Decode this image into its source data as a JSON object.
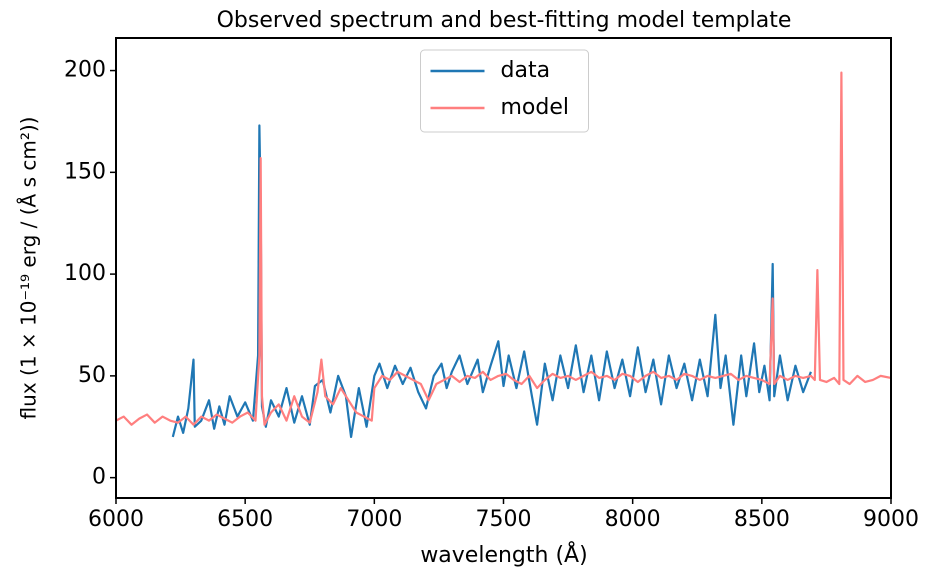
{
  "chart_data": {
    "type": "line",
    "title": "Observed spectrum and best-fitting model template",
    "xlabel": "wavelength (Å)",
    "ylabel": "flux (1 × 10⁻¹⁹ erg / (Å s cm²))",
    "xlim": [
      6000,
      9000
    ],
    "xticks": [
      6000,
      6500,
      7000,
      7500,
      8000,
      8500,
      9000
    ],
    "ylim": [
      -10,
      216
    ],
    "yticks": [
      0,
      50,
      100,
      150,
      200
    ],
    "legend": "upper center",
    "series": [
      {
        "name": "data",
        "color": "#1f77b4",
        "x": [
          6220,
          6240,
          6260,
          6280,
          6300,
          6305,
          6330,
          6360,
          6380,
          6400,
          6420,
          6440,
          6470,
          6500,
          6530,
          6550,
          6555,
          6560,
          6565,
          6580,
          6600,
          6630,
          6660,
          6690,
          6720,
          6750,
          6770,
          6800,
          6830,
          6860,
          6890,
          6910,
          6940,
          6970,
          7000,
          7020,
          7050,
          7080,
          7110,
          7140,
          7170,
          7200,
          7230,
          7260,
          7280,
          7300,
          7330,
          7360,
          7400,
          7420,
          7450,
          7480,
          7500,
          7520,
          7550,
          7580,
          7610,
          7630,
          7660,
          7690,
          7720,
          7750,
          7780,
          7810,
          7840,
          7870,
          7900,
          7930,
          7960,
          7990,
          8020,
          8050,
          8080,
          8110,
          8140,
          8170,
          8200,
          8230,
          8260,
          8290,
          8320,
          8340,
          8360,
          8390,
          8420,
          8440,
          8470,
          8490,
          8510,
          8530,
          8542,
          8548,
          8570,
          8600,
          8630,
          8660,
          8690
        ],
        "values": [
          20,
          30,
          22,
          34,
          58,
          25,
          28,
          38,
          24,
          35,
          26,
          40,
          30,
          37,
          28,
          60,
          173,
          134,
          35,
          25,
          38,
          30,
          44,
          27,
          40,
          26,
          45,
          48,
          32,
          50,
          40,
          20,
          44,
          25,
          50,
          56,
          44,
          55,
          46,
          54,
          42,
          34,
          50,
          56,
          44,
          52,
          60,
          46,
          58,
          42,
          55,
          67,
          45,
          60,
          44,
          62,
          40,
          26,
          56,
          38,
          60,
          44,
          65,
          42,
          60,
          38,
          62,
          44,
          58,
          40,
          64,
          42,
          58,
          36,
          60,
          44,
          56,
          38,
          58,
          40,
          80,
          44,
          60,
          26,
          60,
          40,
          66,
          42,
          55,
          38,
          105,
          40,
          60,
          38,
          55,
          42,
          52
        ]
      },
      {
        "name": "model",
        "color": "#ff7f7f",
        "x": [
          6000,
          6030,
          6060,
          6090,
          6120,
          6150,
          6180,
          6210,
          6240,
          6270,
          6300,
          6330,
          6360,
          6390,
          6420,
          6450,
          6480,
          6510,
          6540,
          6555,
          6560,
          6565,
          6575,
          6600,
          6630,
          6660,
          6690,
          6720,
          6750,
          6780,
          6795,
          6810,
          6840,
          6870,
          6900,
          6930,
          6960,
          6990,
          7000,
          7030,
          7060,
          7090,
          7120,
          7150,
          7180,
          7210,
          7240,
          7270,
          7300,
          7330,
          7360,
          7390,
          7420,
          7450,
          7480,
          7510,
          7540,
          7570,
          7600,
          7630,
          7660,
          7690,
          7720,
          7750,
          7780,
          7810,
          7840,
          7870,
          7900,
          7930,
          7960,
          7990,
          8020,
          8050,
          8080,
          8110,
          8140,
          8170,
          8200,
          8230,
          8260,
          8290,
          8320,
          8350,
          8380,
          8410,
          8440,
          8470,
          8500,
          8530,
          8542,
          8548,
          8570,
          8600,
          8630,
          8660,
          8690,
          8705,
          8715,
          8725,
          8750,
          8780,
          8800,
          8808,
          8816,
          8840,
          8870,
          8900,
          8930,
          8960,
          9000
        ],
        "values": [
          28,
          30,
          26,
          29,
          31,
          27,
          30,
          28,
          27,
          30,
          26,
          30,
          28,
          31,
          29,
          27,
          30,
          32,
          28,
          60,
          157,
          40,
          26,
          32,
          36,
          28,
          40,
          30,
          27,
          42,
          58,
          40,
          36,
          44,
          38,
          32,
          30,
          28,
          44,
          50,
          48,
          52,
          50,
          48,
          46,
          38,
          46,
          48,
          50,
          47,
          50,
          49,
          52,
          48,
          50,
          51,
          48,
          46,
          50,
          44,
          48,
          51,
          49,
          50,
          48,
          50,
          52,
          49,
          50,
          48,
          51,
          50,
          47,
          50,
          52,
          49,
          50,
          48,
          51,
          50,
          48,
          50,
          49,
          50,
          51,
          48,
          50,
          49,
          48,
          46,
          88,
          46,
          50,
          48,
          50,
          49,
          50,
          48,
          102,
          48,
          47,
          49,
          46,
          199,
          48,
          46,
          50,
          47,
          48,
          50,
          49
        ]
      }
    ]
  }
}
